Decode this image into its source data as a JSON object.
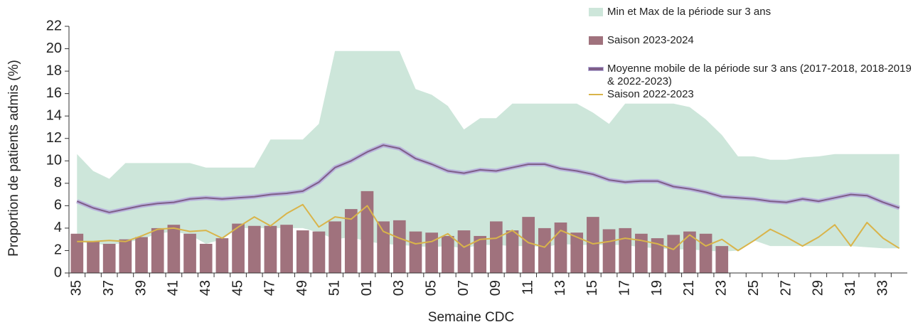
{
  "chart_data": {
    "type": "combo",
    "y_label": "Proportion de patients admis (%)",
    "x_label": "Semaine CDC",
    "categories": [
      "35",
      null,
      "37",
      null,
      "39",
      null,
      "41",
      null,
      "43",
      null,
      "45",
      null,
      "47",
      null,
      "49",
      null,
      "51",
      null,
      "01",
      null,
      "03",
      null,
      "05",
      null,
      "07",
      null,
      "09",
      null,
      "11",
      null,
      "13",
      null,
      "15",
      null,
      "17",
      null,
      "19",
      null,
      "21",
      null,
      "23",
      null,
      "25",
      null,
      "27",
      null,
      "29",
      null,
      "31",
      null,
      "33",
      null
    ],
    "ylim": [
      0,
      22
    ],
    "yticks": [
      0,
      2,
      4,
      6,
      8,
      10,
      12,
      14,
      16,
      18,
      20,
      22
    ],
    "series": [
      {
        "name": "Min et Max de la période sur 3 ans",
        "type": "band",
        "color": "#cde6da",
        "upper": [
          10.6,
          9.1,
          8.4,
          9.8,
          9.8,
          9.8,
          9.8,
          9.8,
          9.4,
          9.4,
          9.4,
          9.4,
          11.9,
          11.9,
          11.9,
          13.3,
          19.8,
          19.8,
          19.8,
          19.8,
          19.8,
          16.4,
          15.9,
          14.9,
          12.8,
          13.8,
          13.8,
          15.1,
          15.1,
          15.1,
          15.1,
          15.1,
          14.3,
          13.3,
          15.1,
          15.1,
          15.1,
          15.1,
          14.8,
          13.7,
          12.3,
          10.4,
          10.4,
          10.1,
          10.1,
          10.3,
          10.4,
          10.6,
          10.6,
          10.6,
          10.6,
          10.6
        ],
        "lower": [
          2.8,
          2.6,
          2.5,
          2.7,
          3.0,
          3.5,
          3.7,
          3.4,
          2.6,
          3.0,
          4.0,
          4.0,
          4.0,
          4.0,
          4.0,
          3.6,
          3.0,
          3.2,
          2.8,
          2.6,
          2.5,
          2.4,
          2.3,
          2.4,
          2.2,
          2.5,
          2.5,
          2.4,
          2.4,
          2.3,
          2.6,
          2.5,
          2.5,
          2.5,
          2.5,
          2.3,
          2.2,
          2.1,
          2.1,
          2.0,
          1.9,
          2.0,
          2.9,
          2.4,
          2.4,
          2.4,
          2.4,
          2.4,
          2.4,
          2.3,
          2.2,
          2.2
        ]
      },
      {
        "name": "Saison 2023-2024",
        "type": "bar",
        "color": "#a0727d",
        "values": [
          3.5,
          2.8,
          2.6,
          3.0,
          3.2,
          4.0,
          4.3,
          3.5,
          2.6,
          3.1,
          4.4,
          4.2,
          4.2,
          4.3,
          3.8,
          3.7,
          4.6,
          5.7,
          7.3,
          4.6,
          4.7,
          3.7,
          3.6,
          3.3,
          3.8,
          3.3,
          4.6,
          3.8,
          5.0,
          4.0,
          4.5,
          3.6,
          5.0,
          3.9,
          4.0,
          3.5,
          3.1,
          3.4,
          3.7,
          3.5,
          2.4,
          null,
          null,
          null,
          null,
          null,
          null,
          null,
          null,
          null,
          null,
          null
        ]
      },
      {
        "name": "Moyenne mobile de la période sur 3 ans (2017-2018, 2018-2019 & 2022-2023)",
        "type": "line",
        "color": "#7e5d88",
        "halo": "#b9b4dc",
        "values": [
          6.4,
          5.8,
          5.4,
          5.7,
          6.0,
          6.2,
          6.3,
          6.6,
          6.7,
          6.6,
          6.7,
          6.8,
          7.0,
          7.1,
          7.3,
          8.1,
          9.4,
          10.0,
          10.8,
          11.4,
          11.1,
          10.2,
          9.7,
          9.1,
          8.9,
          9.2,
          9.1,
          9.4,
          9.7,
          9.7,
          9.3,
          9.1,
          8.8,
          8.3,
          8.1,
          8.2,
          8.2,
          7.7,
          7.5,
          7.2,
          6.8,
          6.7,
          6.6,
          6.4,
          6.3,
          6.6,
          6.4,
          6.7,
          7.0,
          6.9,
          6.3,
          5.8
        ]
      },
      {
        "name": "Saison 2022-2023",
        "type": "line",
        "color": "#d9b44a",
        "values": [
          2.8,
          2.8,
          2.9,
          2.8,
          3.3,
          3.9,
          4.0,
          3.7,
          3.8,
          3.1,
          4.1,
          5.0,
          4.2,
          5.3,
          6.1,
          4.1,
          5.0,
          4.8,
          6.0,
          3.7,
          3.1,
          2.6,
          2.8,
          3.5,
          2.3,
          3.0,
          3.1,
          3.8,
          2.7,
          2.3,
          3.8,
          3.2,
          2.6,
          2.8,
          3.1,
          2.9,
          2.6,
          2.1,
          3.4,
          2.4,
          3.0,
          2.0,
          2.9,
          3.9,
          3.2,
          2.4,
          3.2,
          4.3,
          2.4,
          4.5,
          3.1,
          2.2
        ]
      }
    ]
  }
}
